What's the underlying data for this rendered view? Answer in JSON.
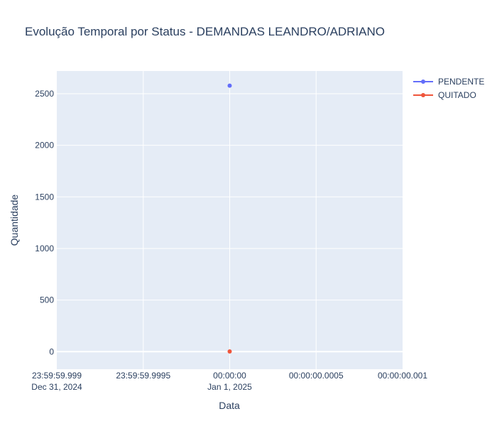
{
  "chart_data": {
    "type": "scatter",
    "title": "Evolução Temporal por Status - DEMANDAS LEANDRO/ADRIANO",
    "xlabel": "Data",
    "ylabel": "Quantidade",
    "x_ticks": [
      {
        "label": "23:59:59.999",
        "sublabel": "Dec 31, 2024"
      },
      {
        "label": "23:59:59.9995",
        "sublabel": ""
      },
      {
        "label": "00:00:00",
        "sublabel": "Jan 1, 2025"
      },
      {
        "label": "00:00:00.0005",
        "sublabel": ""
      },
      {
        "label": "00:00:00.001",
        "sublabel": ""
      }
    ],
    "y_ticks": [
      0,
      500,
      1000,
      1500,
      2000,
      2500
    ],
    "ylim": [
      -170,
      2720
    ],
    "grid": true,
    "legend_position": "top-right",
    "series": [
      {
        "name": "PENDENTE",
        "color": "#636efa",
        "points": [
          {
            "x": "2025-01-01",
            "y": 2578
          }
        ]
      },
      {
        "name": "QUITADO",
        "color": "#ef553b",
        "points": [
          {
            "x": "2025-01-01",
            "y": 2
          }
        ]
      }
    ]
  }
}
